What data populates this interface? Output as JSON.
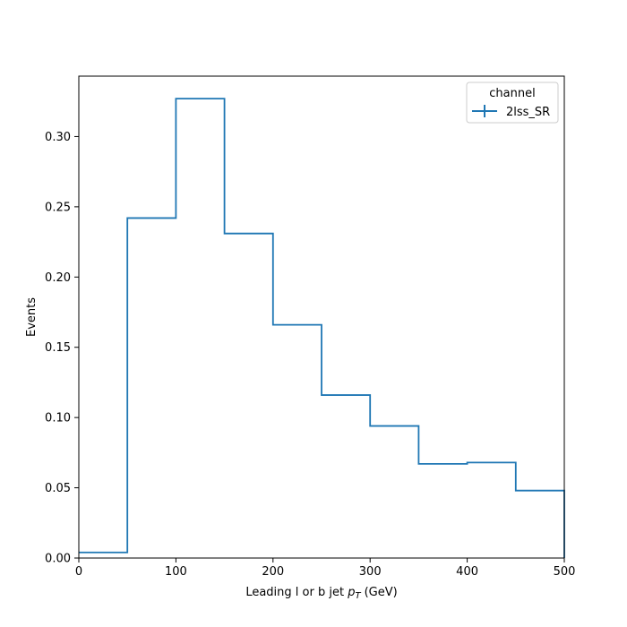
{
  "chart_data": {
    "type": "histogram-step",
    "xlabel": "Leading l or b jet",
    "xlabel_math": "p",
    "xlabel_math_sub": "T",
    "xlabel_unit": "(GeV)",
    "ylabel": "Events",
    "xlim": [
      0,
      500
    ],
    "ylim": [
      0,
      0.343
    ],
    "x_ticks": [
      0,
      100,
      200,
      300,
      400,
      500
    ],
    "x_tick_labels": [
      "0",
      "100",
      "200",
      "300",
      "400",
      "500"
    ],
    "y_ticks": [
      0.0,
      0.05,
      0.1,
      0.15,
      0.2,
      0.25,
      0.3
    ],
    "y_tick_labels": [
      "0.00",
      "0.05",
      "0.10",
      "0.15",
      "0.20",
      "0.25",
      "0.30"
    ],
    "grid": false,
    "legend": {
      "title": "channel",
      "placement": "top-right",
      "entries": [
        {
          "label": "2lss_SR",
          "color": "#1f77b4"
        }
      ]
    },
    "bin_edges": [
      0,
      50,
      100,
      150,
      200,
      250,
      300,
      350,
      400,
      450,
      500
    ],
    "series": [
      {
        "name": "2lss_SR",
        "color": "#1f77b4",
        "values": [
          0.004,
          0.242,
          0.327,
          0.231,
          0.166,
          0.116,
          0.094,
          0.067,
          0.068,
          0.048
        ]
      }
    ]
  }
}
